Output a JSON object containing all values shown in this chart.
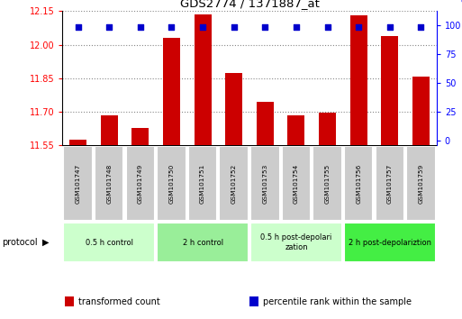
{
  "title": "GDS2774 / 1371887_at",
  "samples": [
    "GSM101747",
    "GSM101748",
    "GSM101749",
    "GSM101750",
    "GSM101751",
    "GSM101752",
    "GSM101753",
    "GSM101754",
    "GSM101755",
    "GSM101756",
    "GSM101757",
    "GSM101759"
  ],
  "bar_values": [
    11.575,
    11.685,
    11.625,
    12.03,
    12.135,
    11.875,
    11.745,
    11.685,
    11.695,
    12.13,
    12.04,
    11.855
  ],
  "percentile_values": [
    98,
    98,
    98,
    98,
    98,
    98,
    98,
    98,
    98,
    98,
    98,
    98
  ],
  "ylim_left": [
    11.55,
    12.15
  ],
  "yticks_left": [
    11.55,
    11.7,
    11.85,
    12.0,
    12.15
  ],
  "yticks_right": [
    0,
    25,
    50,
    75,
    100
  ],
  "bar_color": "#cc0000",
  "dot_color": "#0000cc",
  "protocol_groups": [
    {
      "label": "0.5 h control",
      "start": 0,
      "end": 2,
      "color": "#ccffcc"
    },
    {
      "label": "2 h control",
      "start": 3,
      "end": 5,
      "color": "#99ee99"
    },
    {
      "label": "0.5 h post-depolarization",
      "start": 6,
      "end": 8,
      "color": "#ccffcc"
    },
    {
      "label": "2 h post-depolariztion",
      "start": 9,
      "end": 11,
      "color": "#44ee44"
    }
  ],
  "legend_items": [
    {
      "label": "transformed count",
      "color": "#cc0000"
    },
    {
      "label": "percentile rank within the sample",
      "color": "#0000cc"
    }
  ],
  "background_color": "#ffffff",
  "grid_color": "#888888",
  "sample_box_color": "#cccccc",
  "sample_box_border": "#ffffff"
}
